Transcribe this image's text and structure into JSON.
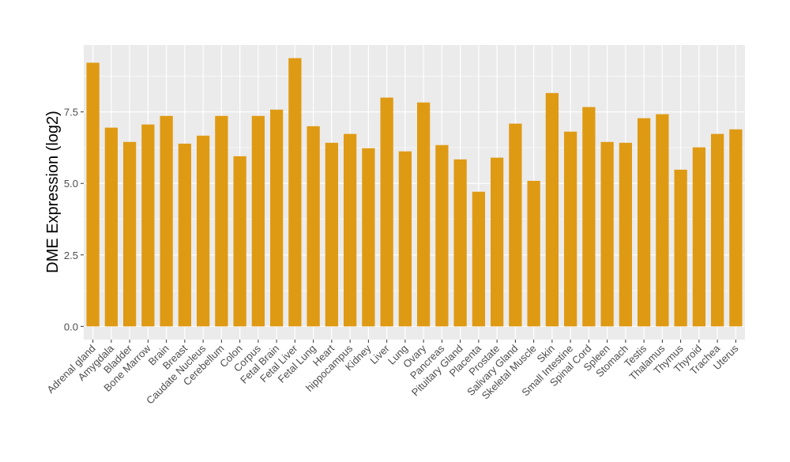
{
  "chart_data": {
    "type": "bar",
    "title": "",
    "xlabel": "",
    "ylabel": "DME Expression (log2)",
    "ylim": [
      -0.45,
      9.9
    ],
    "yticks": [
      "0.0",
      "2.5",
      "5.0",
      "7.5"
    ],
    "ytick_values": [
      0,
      2.5,
      5,
      7.5
    ],
    "grid": true,
    "bar_color": "#DF9A14",
    "panel_color": "#EBEBEB",
    "categories": [
      "Adrenal gland",
      "Amygdala",
      "Bladder",
      "Bone Marrow",
      "Brain",
      "Breast",
      "Caudate Nucleus",
      "Cerebellum",
      "Colon",
      "Corpus",
      "Fetal Brain",
      "Fetal Liver",
      "Fetal Lung",
      "Heart",
      "hippocampus",
      "Kidney",
      "Liver",
      "Lung",
      "Ovary",
      "Pancreas",
      "Pituitary Gland",
      "Placenta",
      "Prostate",
      "Salivary Gland",
      "Skeletal Muscle",
      "Skin",
      "Small Intestine",
      "Spinal Cord",
      "Spleen",
      "Stomach",
      "Testis",
      "Thalamus",
      "Thymus",
      "Thyroid",
      "Trachea",
      "Uterus"
    ],
    "values": [
      9.22,
      6.95,
      6.45,
      7.06,
      7.36,
      6.39,
      6.67,
      7.36,
      5.95,
      7.36,
      7.58,
      9.38,
      7.0,
      6.42,
      6.73,
      6.23,
      8.0,
      6.12,
      7.83,
      6.34,
      5.84,
      4.71,
      5.9,
      7.09,
      5.09,
      8.16,
      6.81,
      7.67,
      6.45,
      6.42,
      7.28,
      7.42,
      5.48,
      6.26,
      6.73,
      6.89
    ]
  }
}
